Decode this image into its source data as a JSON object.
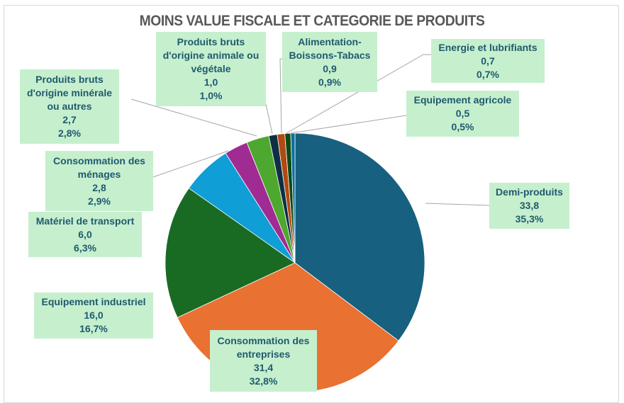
{
  "chart_data": {
    "type": "pie",
    "title": "MOINS VALUE FISCALE ET CATEGORIE DE PRODUITS",
    "slices": [
      {
        "label": "Demi-produits",
        "value": 33.8,
        "value_text": "33,8",
        "percent_text": "35,3%",
        "color": "#17607f"
      },
      {
        "label": "Consommation des entreprises",
        "value": 31.4,
        "value_text": "31,4",
        "percent_text": "32,8%",
        "color": "#e97132"
      },
      {
        "label": "Equipement industriel",
        "value": 16.0,
        "value_text": "16,0",
        "percent_text": "16,7%",
        "color": "#196b24"
      },
      {
        "label": "Matériel de transport",
        "value": 6.0,
        "value_text": "6,0",
        "percent_text": "6,3%",
        "color": "#0f9ed5"
      },
      {
        "label": "Consommation des ménages",
        "value": 2.8,
        "value_text": "2,8",
        "percent_text": "2,9%",
        "color": "#a02b93"
      },
      {
        "label": "Produits bruts d'origine minérale ou autres",
        "value": 2.7,
        "value_text": "2,7",
        "percent_text": "2,8%",
        "color": "#4ea72e"
      },
      {
        "label": "Produits bruts d'origine animale ou végétale",
        "value": 1.0,
        "value_text": "1,0",
        "percent_text": "1,0%",
        "color": "#0e2f44"
      },
      {
        "label": "Alimentation-Boissons-Tabacs",
        "value": 0.9,
        "value_text": "0,9",
        "percent_text": "0,9%",
        "color": "#b04a12"
      },
      {
        "label": "Energie et lubrifiants",
        "value": 0.7,
        "value_text": "0,7",
        "percent_text": "0,7%",
        "color": "#0f4a16"
      },
      {
        "label": "Equipement agricole",
        "value": 0.5,
        "value_text": "0,5",
        "percent_text": "0,5%",
        "color": "#0a6fa0"
      }
    ],
    "legend": "none",
    "data_labels": "category, value, percent"
  }
}
